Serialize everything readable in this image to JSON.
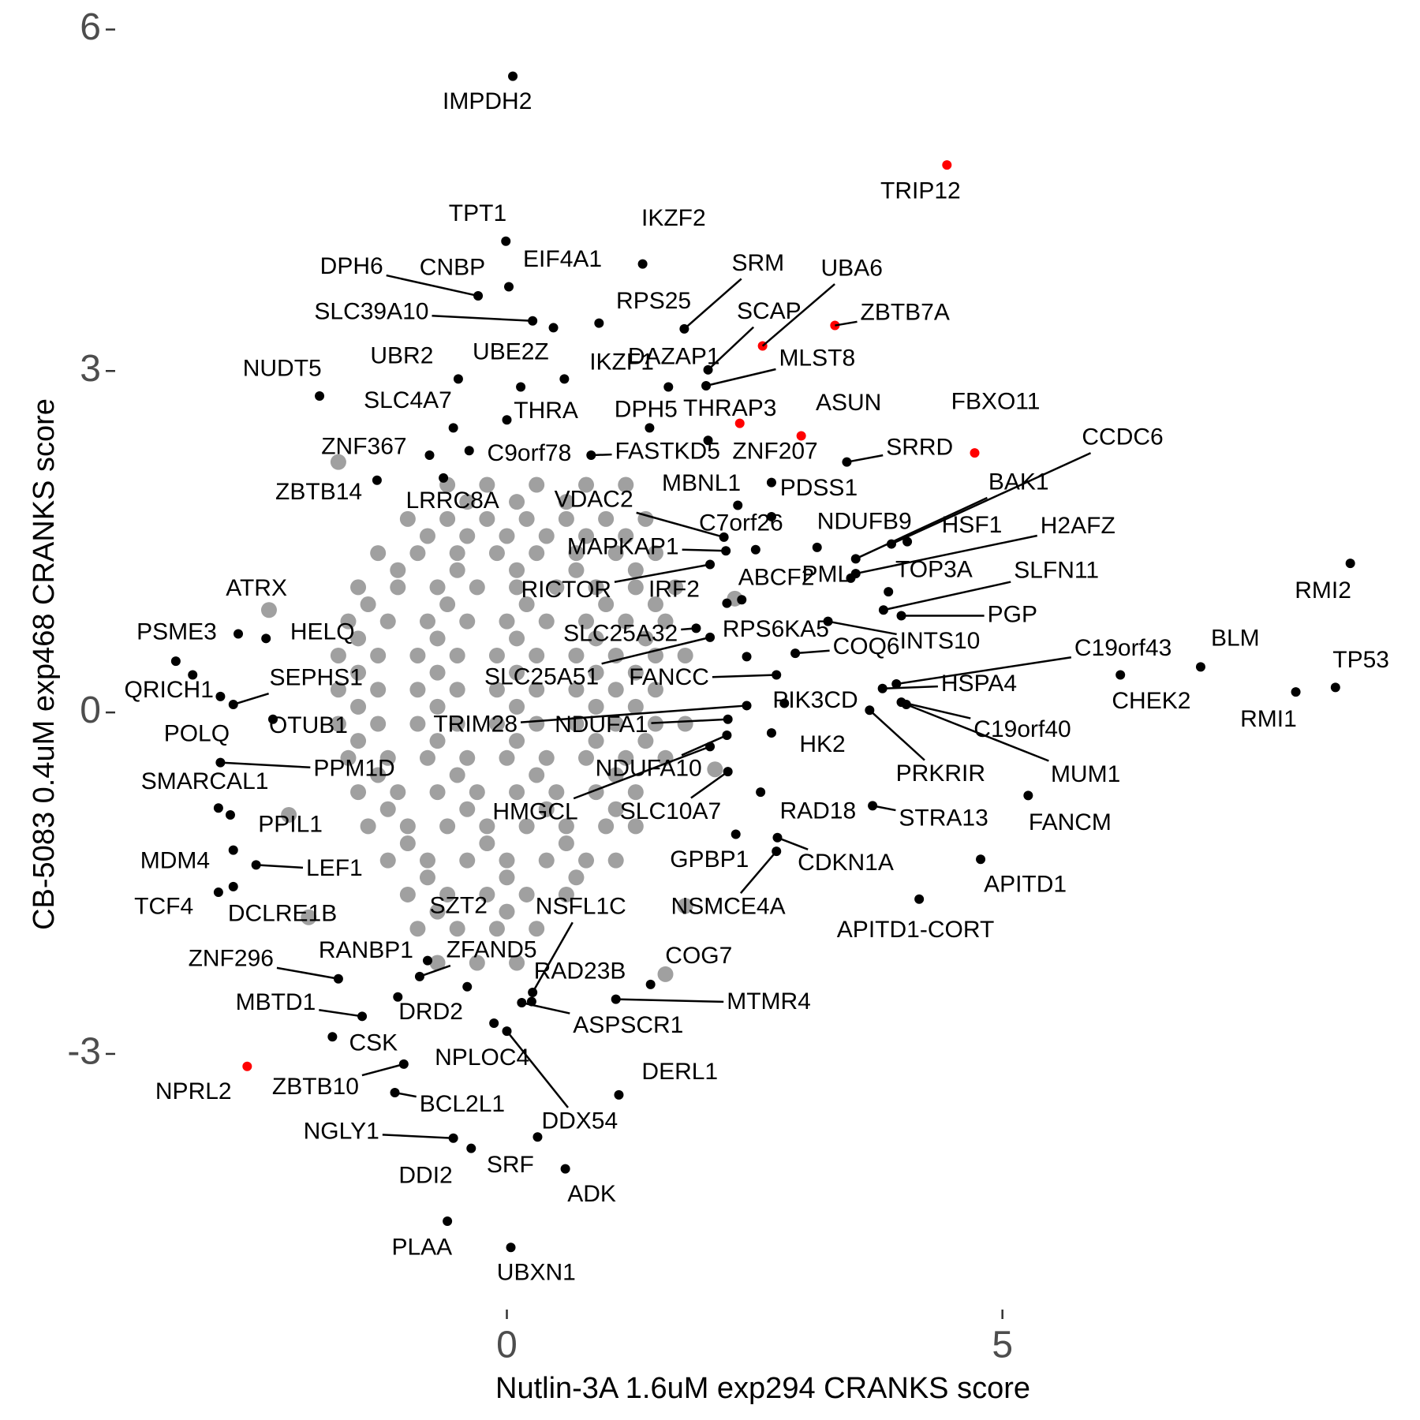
{
  "chart_data": {
    "type": "scatter",
    "x_label": "Nutlin-3A 1.6uM exp294 CRANKS score",
    "y_label": "CB-5083 0.4uM exp468 CRANKS score",
    "xlim": [
      -3.92,
      9.03
    ],
    "ylim": [
      -5.26,
      6.1
    ],
    "xticks": [
      0,
      5
    ],
    "yticks": [
      -3,
      0,
      3,
      6
    ],
    "grid": false,
    "series": [
      {
        "color": "#a0a0a0",
        "x": [
          -0.6,
          -0.2,
          0.3,
          0.8,
          1.2,
          -0.4,
          0.1,
          0.6,
          -1.0,
          -0.6,
          -0.2,
          0.2,
          0.6,
          1.0,
          1.4,
          -0.8,
          -0.4,
          0,
          0.4,
          0.8,
          1.2,
          -1.3,
          -0.9,
          -0.5,
          -0.1,
          0.3,
          0.7,
          1.1,
          1.5,
          -1.1,
          -0.5,
          0.1,
          0.7,
          1.3,
          -1.5,
          -1.1,
          -0.7,
          -0.3,
          0.1,
          0.5,
          0.9,
          1.3,
          1.7,
          -1.4,
          -0.6,
          0.2,
          1.0,
          1.5,
          -1.6,
          -1.2,
          -0.8,
          -0.4,
          0,
          0.4,
          0.8,
          1.2,
          1.6,
          -1.5,
          -0.7,
          0.1,
          0.9,
          1.4,
          -1.7,
          -1.3,
          -0.9,
          -0.5,
          -0.1,
          0.3,
          0.7,
          1.1,
          1.5,
          1.8,
          -1.5,
          -0.7,
          0.1,
          0.9,
          1.3,
          -1.7,
          -1.3,
          -0.9,
          -0.5,
          -0.1,
          0.3,
          0.7,
          1.1,
          1.5,
          -1.5,
          -0.7,
          0.1,
          0.9,
          1.3,
          -1.7,
          -1.3,
          -0.9,
          -0.5,
          -0.1,
          0.3,
          0.7,
          1.1,
          1.5,
          1.8,
          -1.5,
          -0.7,
          0.1,
          0.9,
          1.4,
          -1.6,
          -1.2,
          -0.8,
          -0.4,
          0,
          0.4,
          0.8,
          1.2,
          1.6,
          -1.3,
          -0.5,
          0.3,
          1.1,
          -1.5,
          -1.1,
          -0.7,
          -0.3,
          0.1,
          0.5,
          0.9,
          1.3,
          -1.2,
          -0.4,
          0.4,
          1.1,
          -1.4,
          -1.0,
          -0.6,
          -0.2,
          0.2,
          0.6,
          1.0,
          1.3,
          -1.0,
          -0.2,
          0.6,
          -1.2,
          -0.8,
          -0.4,
          0,
          0.4,
          0.8,
          1.1,
          -0.8,
          0,
          0.7,
          -1.0,
          -0.6,
          -0.2,
          0.2,
          0.6,
          -0.7,
          0,
          -0.9,
          -0.5,
          -0.1,
          0.3,
          -0.7,
          -0.3,
          0.1,
          -2.2,
          2.3,
          -2.4,
          1.8,
          -2.0,
          2.1,
          1.6,
          -1.7
        ],
        "y": [
          2.0,
          2.0,
          2.0,
          2.0,
          2.0,
          1.85,
          1.85,
          1.85,
          1.7,
          1.7,
          1.7,
          1.7,
          1.7,
          1.7,
          1.7,
          1.55,
          1.55,
          1.55,
          1.55,
          1.55,
          1.55,
          1.4,
          1.4,
          1.4,
          1.4,
          1.4,
          1.4,
          1.4,
          1.4,
          1.25,
          1.25,
          1.25,
          1.25,
          1.25,
          1.1,
          1.1,
          1.1,
          1.1,
          1.1,
          1.1,
          1.1,
          1.1,
          1.1,
          0.95,
          0.95,
          0.95,
          0.95,
          0.95,
          0.8,
          0.8,
          0.8,
          0.8,
          0.8,
          0.8,
          0.8,
          0.8,
          0.8,
          0.65,
          0.65,
          0.65,
          0.65,
          0.65,
          0.5,
          0.5,
          0.5,
          0.5,
          0.5,
          0.5,
          0.5,
          0.5,
          0.5,
          0.5,
          0.35,
          0.35,
          0.35,
          0.35,
          0.35,
          0.2,
          0.2,
          0.2,
          0.2,
          0.2,
          0.2,
          0.2,
          0.2,
          0.2,
          0.05,
          0.05,
          0.05,
          0.05,
          0.05,
          -0.1,
          -0.1,
          -0.1,
          -0.1,
          -0.1,
          -0.1,
          -0.1,
          -0.1,
          -0.1,
          -0.1,
          -0.25,
          -0.25,
          -0.25,
          -0.25,
          -0.25,
          -0.4,
          -0.4,
          -0.4,
          -0.4,
          -0.4,
          -0.4,
          -0.4,
          -0.4,
          -0.4,
          -0.55,
          -0.55,
          -0.55,
          -0.55,
          -0.7,
          -0.7,
          -0.7,
          -0.7,
          -0.7,
          -0.7,
          -0.7,
          -0.7,
          -0.85,
          -0.85,
          -0.85,
          -0.85,
          -1.0,
          -1.0,
          -1.0,
          -1.0,
          -1.0,
          -1.0,
          -1.0,
          -1.0,
          -1.15,
          -1.15,
          -1.15,
          -1.3,
          -1.3,
          -1.3,
          -1.3,
          -1.3,
          -1.3,
          -1.3,
          -1.45,
          -1.45,
          -1.45,
          -1.6,
          -1.6,
          -1.6,
          -1.6,
          -1.6,
          -1.75,
          -1.75,
          -1.9,
          -1.9,
          -1.9,
          -1.9,
          -2.2,
          -2.2,
          -2.2,
          -0.9,
          1.0,
          0.9,
          -1.7,
          -1.8,
          -0.5,
          -2.3,
          2.2
        ]
      },
      {
        "color": "#000000",
        "labels": [
          "IMPDH2",
          "TPT1",
          "IKZF2",
          "DPH6",
          "CNBP",
          "EIF4A1",
          "SRM",
          "RPS25",
          "SCAP",
          "SLC39A10",
          "UBR2",
          "UBE2Z",
          "IKZF1",
          "DAZAP1",
          "NUDT5",
          "SLC4A7",
          "THRA",
          "DPH5",
          "THRAP3",
          "MLST8",
          "SRRD",
          "CCDC6",
          "ZNF367",
          "C9orf78",
          "FASTKD5",
          "ZNF207",
          "ZBTB14",
          "LRRC8A",
          "MBNL1",
          "PDSS1",
          "BAK1",
          "VDAC2",
          "C7orf26",
          "NDUFB9",
          "HSF1",
          "H2AFZ",
          "MAPKAP1",
          "PML",
          "TOP3A",
          "SLFN11",
          "RICTOR",
          "IRF2",
          "ABCF2",
          "PGP",
          "ATRX",
          "PSME3",
          "HELQ",
          "SLC25A32",
          "RPS6KA5",
          "COQ6",
          "INTS10",
          "C19orf43",
          "BLM",
          "RMI2",
          "TP53",
          "SLC25A51",
          "FANCC",
          "QRICH1",
          "POLQ",
          "SEPHS1",
          "OTUB1",
          "PPM1D",
          "CHEK2",
          "HSPA4",
          "PIK3CD",
          "RMI1",
          "TRIM28",
          "NDUFA1",
          "C19orf40",
          "HK2",
          "MUM1",
          "PRKRIR",
          "NDUFA10",
          "SMARCAL1",
          "HMGCL",
          "SLC10A7",
          "RAD18",
          "STRA13",
          "FANCM",
          "PPIL1",
          "MDM4",
          "LEF1",
          "GPBP1",
          "CDKN1A",
          "APITD1",
          "TCF4",
          "DCLRE1B",
          "SZT2",
          "NSFL1C",
          "NSMCE4A",
          "APITD1-CORT",
          "ZNF296",
          "RANBP1",
          "ZFAND5",
          "COG7",
          "RAD23B",
          "MBTD1",
          "DRD2",
          "MTMR4",
          "ASPSCR1",
          "CSK",
          "NPLOC4",
          "ZBTB10",
          "DERL1",
          "BCL2L1",
          "DDX54",
          "NGLY1",
          "SRF",
          "ADK",
          "DDI2",
          "PLAA",
          "UBXN1"
        ],
        "x": [
          0.06,
          -0.01,
          1.37,
          -0.29,
          0.02,
          0.47,
          1.79,
          0.93,
          2.03,
          0.26,
          -0.49,
          0.14,
          0.58,
          1.63,
          -1.89,
          -0.54,
          0,
          1.44,
          2.03,
          2.01,
          3.43,
          3.88,
          -0.78,
          -0.38,
          0.85,
          2.67,
          -1.31,
          -0.64,
          2.33,
          2.67,
          3.52,
          2.19,
          2.51,
          3.13,
          4.04,
          3.52,
          2.21,
          3.47,
          3.85,
          3.8,
          2.05,
          2.22,
          2.37,
          3.98,
          -2.71,
          -3.34,
          -2.43,
          1.91,
          2.42,
          2.91,
          3.24,
          3.93,
          7.0,
          8.51,
          8.36,
          2.05,
          2.72,
          -3.17,
          -2.89,
          -2.76,
          -2.36,
          -2.89,
          6.19,
          3.79,
          2.8,
          7.96,
          2.42,
          2.23,
          3.98,
          2.67,
          4.03,
          3.66,
          2.22,
          -2.91,
          2.05,
          2.23,
          2.56,
          3.69,
          5.26,
          -2.79,
          -2.76,
          -2.53,
          2.31,
          2.73,
          4.78,
          -2.91,
          -2.76,
          -0.8,
          0.26,
          2.72,
          4.16,
          -1.7,
          -1.1,
          -0.88,
          1.45,
          0.25,
          -1.46,
          -0.4,
          1.1,
          0.15,
          -1.76,
          -0.13,
          -1.04,
          1.13,
          -1.13,
          0,
          -0.54,
          0.31,
          0.59,
          -0.36,
          -0.6,
          0.04
        ],
        "y": [
          5.59,
          4.14,
          3.94,
          3.66,
          3.74,
          3.38,
          3.37,
          3.42,
          3.01,
          3.44,
          2.93,
          2.86,
          2.93,
          2.86,
          2.78,
          2.5,
          2.57,
          2.5,
          2.39,
          2.87,
          2.2,
          1.48,
          2.26,
          2.3,
          2.26,
          2.02,
          2.04,
          2.06,
          1.82,
          1.72,
          1.35,
          1.54,
          1.43,
          1.45,
          1.5,
          1.22,
          1.42,
          1.18,
          1.06,
          0.9,
          1.3,
          0.96,
          0.99,
          0.85,
          0.69,
          0.45,
          0.65,
          0.74,
          0.49,
          0.52,
          0.8,
          0.25,
          0.4,
          1.31,
          0.22,
          0.66,
          0.33,
          0.33,
          0.14,
          0.07,
          -0.06,
          -0.44,
          0.33,
          0.21,
          0.08,
          0.18,
          0.06,
          -0.06,
          0.09,
          -0.18,
          0.07,
          0.02,
          -0.2,
          -0.84,
          -0.3,
          -0.52,
          -0.7,
          -0.82,
          -0.73,
          -0.9,
          -1.21,
          -1.34,
          -1.07,
          -1.1,
          -1.29,
          -1.58,
          -1.53,
          -2.18,
          -2.46,
          -1.22,
          -1.64,
          -2.34,
          -2.5,
          -2.32,
          -2.39,
          -2.54,
          -2.67,
          -2.41,
          -2.52,
          -2.55,
          -2.85,
          -2.73,
          -3.09,
          -3.36,
          -3.34,
          -2.8,
          -3.74,
          -3.73,
          -4.01,
          -3.83,
          -4.47,
          -4.7
        ]
      },
      {
        "color": "#ff0000",
        "labels": [
          "TRIP12",
          "ZBTB7A",
          "UBA6",
          "ASUN",
          "FBXO11",
          "NPRL2",
          null
        ],
        "x": [
          4.44,
          3.31,
          2.58,
          2.97,
          4.72,
          -2.62,
          2.35
        ],
        "y": [
          4.81,
          3.4,
          3.22,
          2.43,
          2.28,
          -3.11,
          2.54
        ]
      }
    ]
  }
}
